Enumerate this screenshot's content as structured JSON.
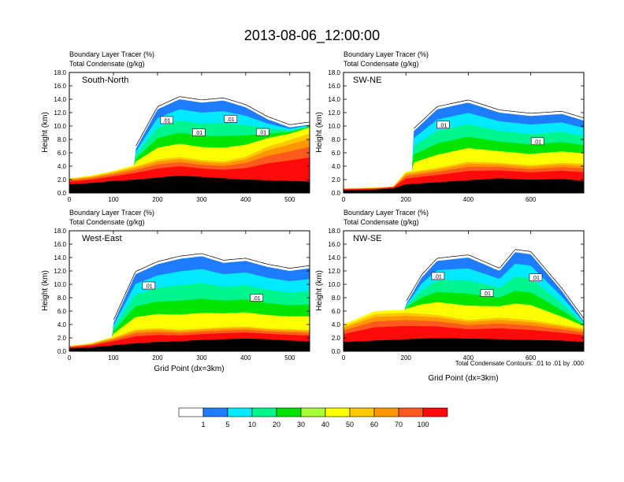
{
  "figure": {
    "title": "2013-08-06_12:00:00",
    "contour_note": "Total Condensate Contours: .01 to .01 by .000"
  },
  "colors": {
    "bins": [
      "#ffffff",
      "#1e7cff",
      "#00eaff",
      "#00f58c",
      "#00e400",
      "#a4ff38",
      "#ffff00",
      "#ffc800",
      "#ff9600",
      "#ff5a1e",
      "#ff0a0a"
    ],
    "terrain": "#000000",
    "background": "#ffffff"
  },
  "colorbar": {
    "labels": [
      "1",
      "5",
      "10",
      "20",
      "30",
      "40",
      "50",
      "60",
      "70",
      "100"
    ]
  },
  "chart_data": [
    {
      "type": "heatmap",
      "panel": "South-North",
      "title_line1": "Boundary Layer Tracer   (%)",
      "title_line2": "Total Condensate   (g/kg)",
      "xlabel": "",
      "ylabel": "Height (km)",
      "xlim": [
        0,
        545
      ],
      "ylim": [
        0,
        18
      ],
      "xticks": [
        0,
        100,
        200,
        300,
        400,
        500
      ],
      "yticks": [
        "0.0",
        "2.0",
        "4.0",
        "6.0",
        "8.0",
        "10.0",
        "12.0",
        "14.0",
        "16.0",
        "18.0"
      ],
      "marker_x": 275,
      "contour_labels": [
        ".01",
        ".01",
        ".01",
        ".01"
      ],
      "terrain_km": [
        [
          0,
          1.3
        ],
        [
          50,
          1.5
        ],
        [
          100,
          1.8
        ],
        [
          150,
          2.0
        ],
        [
          200,
          2.3
        ],
        [
          250,
          2.6
        ],
        [
          300,
          2.4
        ],
        [
          350,
          2.2
        ],
        [
          400,
          2.0
        ],
        [
          450,
          1.9
        ],
        [
          500,
          1.8
        ],
        [
          545,
          1.7
        ]
      ],
      "pbl_top_km": [
        [
          0,
          2.2
        ],
        [
          50,
          2.6
        ],
        [
          100,
          3.3
        ],
        [
          150,
          4.2
        ],
        [
          200,
          5.3
        ],
        [
          250,
          5.7
        ],
        [
          300,
          5.2
        ],
        [
          350,
          5.0
        ],
        [
          400,
          5.8
        ],
        [
          450,
          7.5
        ],
        [
          500,
          8.6
        ],
        [
          545,
          9.7
        ]
      ],
      "cloud_km": [
        [
          150,
          6.5
        ],
        [
          200,
          12.5
        ],
        [
          250,
          14.0
        ],
        [
          300,
          13.5
        ],
        [
          350,
          13.8
        ],
        [
          400,
          12.8
        ],
        [
          450,
          11.0
        ],
        [
          500,
          9.8
        ],
        [
          545,
          10.2
        ]
      ]
    },
    {
      "type": "heatmap",
      "panel": "SW-NE",
      "title_line1": "Boundary Layer Tracer   (%)",
      "title_line2": "Total Condensate   (g/kg)",
      "xlabel": "",
      "ylabel": "Height (km)",
      "xlim": [
        0,
        770
      ],
      "ylim": [
        0,
        18
      ],
      "xticks": [
        0,
        200,
        400,
        600
      ],
      "yticks": [
        "0.0",
        "2.0",
        "4.0",
        "6.0",
        "8.0",
        "10.0",
        "12.0",
        "14.0",
        "16.0",
        "18.0"
      ],
      "marker_x": 390,
      "contour_labels": [
        ".01",
        ".01"
      ],
      "terrain_km": [
        [
          0,
          0.4
        ],
        [
          100,
          0.5
        ],
        [
          160,
          0.7
        ],
        [
          200,
          1.3
        ],
        [
          300,
          1.6
        ],
        [
          400,
          1.9
        ],
        [
          500,
          2.2
        ],
        [
          600,
          2.0
        ],
        [
          700,
          2.1
        ],
        [
          770,
          1.8
        ]
      ],
      "pbl_top_km": [
        [
          0,
          0.7
        ],
        [
          100,
          0.8
        ],
        [
          160,
          1.0
        ],
        [
          200,
          3.2
        ],
        [
          300,
          4.0
        ],
        [
          400,
          5.0
        ],
        [
          500,
          4.8
        ],
        [
          600,
          4.4
        ],
        [
          700,
          4.8
        ],
        [
          770,
          4.7
        ]
      ],
      "cloud_km": [
        [
          220,
          9.0
        ],
        [
          300,
          12.5
        ],
        [
          400,
          13.5
        ],
        [
          500,
          12.0
        ],
        [
          600,
          11.5
        ],
        [
          700,
          11.8
        ],
        [
          770,
          10.8
        ]
      ]
    },
    {
      "type": "heatmap",
      "panel": "West-East",
      "title_line1": "Boundary Layer Tracer   (%)",
      "title_line2": "Total Condensate   (g/kg)",
      "xlabel": "Grid Point (dx=3km)",
      "ylabel": "Height (km)",
      "xlim": [
        0,
        545
      ],
      "ylim": [
        0,
        18
      ],
      "xticks": [
        0,
        100,
        200,
        300,
        400,
        500
      ],
      "yticks": [
        "0.0",
        "2.0",
        "4.0",
        "6.0",
        "8.0",
        "10.0",
        "12.0",
        "14.0",
        "16.0",
        "18.0"
      ],
      "marker_x": 275,
      "contour_labels": [
        ".01",
        ".01"
      ],
      "terrain_km": [
        [
          0,
          0.4
        ],
        [
          50,
          0.6
        ],
        [
          100,
          0.9
        ],
        [
          150,
          1.2
        ],
        [
          200,
          1.4
        ],
        [
          250,
          1.5
        ],
        [
          300,
          1.7
        ],
        [
          350,
          1.8
        ],
        [
          400,
          1.9
        ],
        [
          450,
          1.8
        ],
        [
          500,
          1.6
        ],
        [
          545,
          1.5
        ]
      ],
      "pbl_top_km": [
        [
          0,
          0.8
        ],
        [
          50,
          1.2
        ],
        [
          100,
          2.2
        ],
        [
          150,
          3.5
        ],
        [
          200,
          3.7
        ],
        [
          250,
          3.4
        ],
        [
          300,
          3.6
        ],
        [
          350,
          3.8
        ],
        [
          400,
          3.9
        ],
        [
          450,
          3.6
        ],
        [
          500,
          3.5
        ],
        [
          545,
          3.4
        ]
      ],
      "cloud_km": [
        [
          100,
          4.2
        ],
        [
          150,
          11.5
        ],
        [
          200,
          13.0
        ],
        [
          250,
          13.8
        ],
        [
          300,
          14.2
        ],
        [
          350,
          13.2
        ],
        [
          400,
          13.5
        ],
        [
          450,
          12.6
        ],
        [
          500,
          12.0
        ],
        [
          545,
          12.4
        ]
      ]
    },
    {
      "type": "heatmap",
      "panel": "NW-SE",
      "title_line1": "Boundary Layer Tracer   (%)",
      "title_line2": "Total Condensate   (g/kg)",
      "xlabel": "Grid Point (dx=3km)",
      "ylabel": "Height (km)",
      "xlim": [
        0,
        770
      ],
      "ylim": [
        0,
        18
      ],
      "xticks": [
        0,
        200,
        400,
        600
      ],
      "yticks": [
        "0.0",
        "2.0",
        "4.0",
        "6.0",
        "8.0",
        "10.0",
        "12.0",
        "14.0",
        "16.0",
        "18.0"
      ],
      "marker_x": 390,
      "contour_labels": [
        ".01",
        ".01",
        ".01"
      ],
      "terrain_km": [
        [
          0,
          1.4
        ],
        [
          100,
          1.6
        ],
        [
          200,
          1.8
        ],
        [
          300,
          2.0
        ],
        [
          400,
          1.9
        ],
        [
          500,
          1.8
        ],
        [
          600,
          1.7
        ],
        [
          700,
          1.6
        ],
        [
          770,
          1.4
        ]
      ],
      "pbl_top_km": [
        [
          0,
          4.0
        ],
        [
          100,
          6.0
        ],
        [
          200,
          6.2
        ],
        [
          300,
          5.8
        ],
        [
          400,
          5.0
        ],
        [
          500,
          5.4
        ],
        [
          600,
          5.0
        ],
        [
          700,
          4.2
        ],
        [
          770,
          3.6
        ]
      ],
      "cloud_km": [
        [
          200,
          7.0
        ],
        [
          250,
          11.0
        ],
        [
          300,
          13.5
        ],
        [
          400,
          14.0
        ],
        [
          500,
          12.0
        ],
        [
          550,
          14.8
        ],
        [
          600,
          14.5
        ],
        [
          700,
          9.0
        ],
        [
          770,
          4.5
        ]
      ]
    }
  ]
}
